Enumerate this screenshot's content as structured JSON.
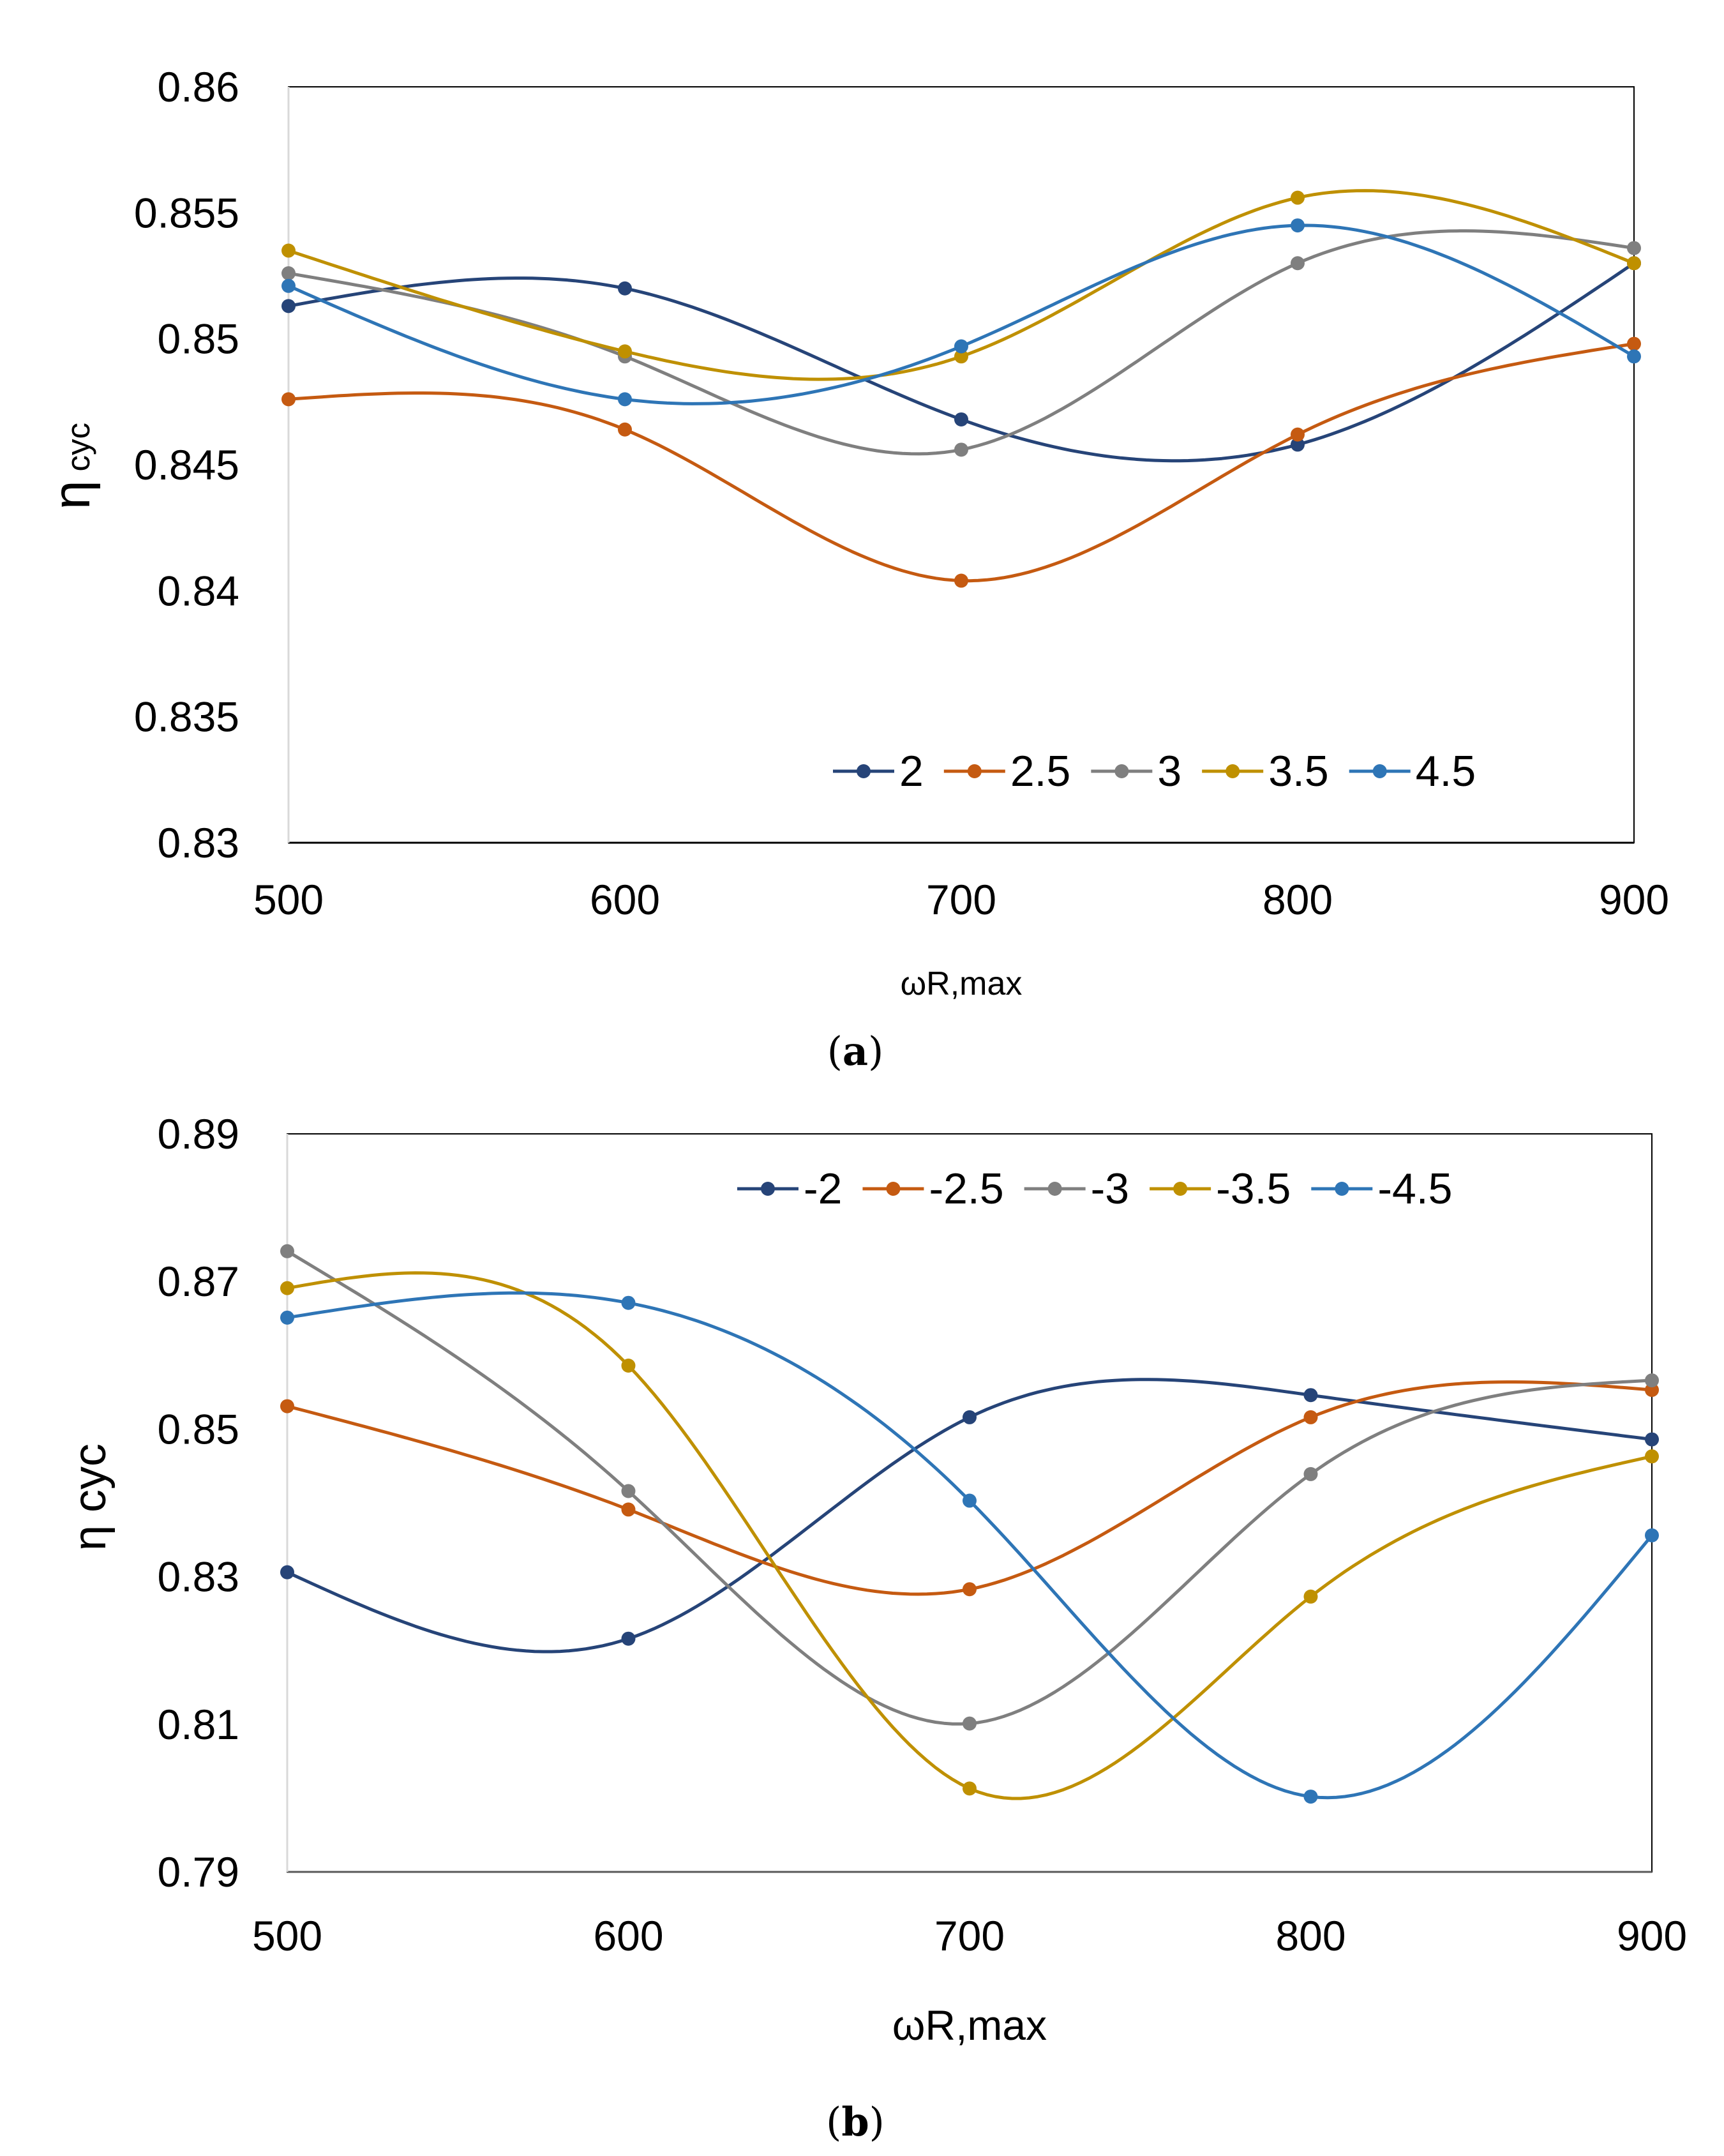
{
  "colors": {
    "s1": "#264478",
    "s2": "#C55A11",
    "s3": "#7F7F7F",
    "s4": "#BF9000",
    "s5": "#2E75B6",
    "axis_a": "#000000",
    "axis_b": "#595959",
    "frame": "#000000"
  },
  "chart_data": [
    {
      "type": "line",
      "panel_label": "a",
      "xlabel": "ωR,max",
      "ylabel": "η",
      "ylabel_sub": "cyc",
      "categories": [
        500,
        600,
        700,
        800,
        900
      ],
      "x_tick_labels": [
        "500",
        "600",
        "700",
        "800",
        "900"
      ],
      "ylim": [
        0.83,
        0.86
      ],
      "y_ticks": [
        0.83,
        0.835,
        0.84,
        0.845,
        0.85,
        0.855,
        0.86
      ],
      "y_tick_labels": [
        "0.83",
        "0.835",
        "0.84",
        "0.845",
        "0.85",
        "0.855",
        "0.86"
      ],
      "legend_position": "bottom-right",
      "series": [
        {
          "name": "2",
          "values": [
            0.8513,
            0.852,
            0.8468,
            0.8458,
            0.853
          ],
          "color": "#264478"
        },
        {
          "name": "2.5",
          "values": [
            0.8476,
            0.8464,
            0.8404,
            0.8462,
            0.8498
          ],
          "color": "#C55A11"
        },
        {
          "name": "3",
          "values": [
            0.8526,
            0.8493,
            0.8456,
            0.853,
            0.8536
          ],
          "color": "#7F7F7F"
        },
        {
          "name": "3.5",
          "values": [
            0.8535,
            0.8495,
            0.8493,
            0.8556,
            0.853
          ],
          "color": "#BF9000"
        },
        {
          "name": "4.5",
          "values": [
            0.8521,
            0.8476,
            0.8497,
            0.8545,
            0.8493
          ],
          "color": "#2E75B6"
        }
      ]
    },
    {
      "type": "line",
      "panel_label": "b",
      "xlabel": "ωR,max",
      "ylabel": "η cyc",
      "categories": [
        500,
        600,
        700,
        800,
        900
      ],
      "x_tick_labels": [
        "500",
        "600",
        "700",
        "800",
        "900"
      ],
      "ylim": [
        0.79,
        0.89
      ],
      "y_ticks": [
        0.79,
        0.81,
        0.83,
        0.85,
        0.87,
        0.89
      ],
      "y_tick_labels": [
        "0.79",
        "0.81",
        "0.83",
        "0.85",
        "0.87",
        "0.89"
      ],
      "legend_position": "top-right",
      "series": [
        {
          "name": "-2",
          "values": [
            0.8306,
            0.8216,
            0.8516,
            0.8546,
            0.8486
          ],
          "color": "#264478"
        },
        {
          "name": "-2.5",
          "values": [
            0.8531,
            0.8391,
            0.8283,
            0.8516,
            0.8553
          ],
          "color": "#C55A11"
        },
        {
          "name": "-3",
          "values": [
            0.8741,
            0.8416,
            0.8101,
            0.8439,
            0.8566
          ],
          "color": "#7F7F7F"
        },
        {
          "name": "-3.5",
          "values": [
            0.8691,
            0.8586,
            0.8013,
            0.8273,
            0.8463
          ],
          "color": "#BF9000"
        },
        {
          "name": "-4.5",
          "values": [
            0.8651,
            0.8671,
            0.8403,
            0.8002,
            0.8356
          ],
          "color": "#2E75B6"
        }
      ]
    }
  ]
}
